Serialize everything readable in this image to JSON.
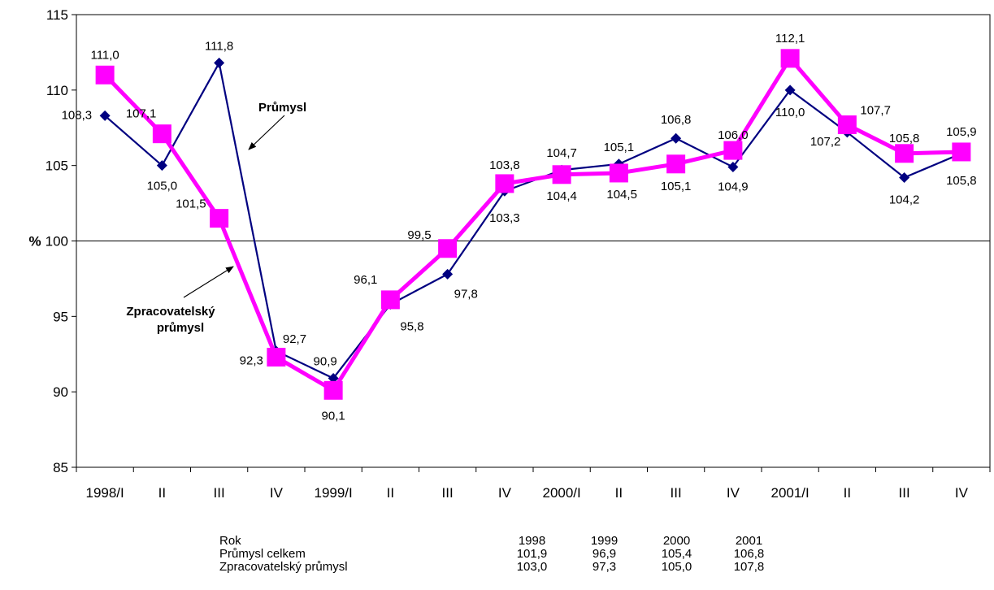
{
  "chart_data": {
    "type": "line",
    "ylabel": "%",
    "ylim": [
      85,
      115
    ],
    "yticks": [
      85,
      90,
      95,
      100,
      105,
      110,
      115
    ],
    "reference_line": 100,
    "categories": [
      "1998/I",
      "II",
      "III",
      "IV",
      "1999/I",
      "II",
      "III",
      "IV",
      "2000/I",
      "II",
      "III",
      "IV",
      "2001/I",
      "II",
      "III",
      "IV"
    ],
    "series": [
      {
        "name": "Průmysl",
        "color": "#000080",
        "marker": "diamond",
        "values": [
          108.3,
          105.0,
          111.8,
          92.7,
          90.9,
          95.8,
          97.8,
          103.3,
          104.7,
          105.1,
          106.8,
          104.9,
          110.0,
          107.2,
          104.2,
          105.8
        ],
        "labels": [
          "108,3",
          "105,0",
          "111,8",
          "92,7",
          "90,9",
          "95,8",
          "97,8",
          "103,3",
          "104,7",
          "105,1",
          "106,8",
          "104,9",
          "110,0",
          "107,2",
          "104,2",
          "105,8"
        ]
      },
      {
        "name": "Zpracovatelský průmysl",
        "color": "#ff00ff",
        "marker": "square",
        "values": [
          111.0,
          107.1,
          101.5,
          92.3,
          90.1,
          96.1,
          99.5,
          103.8,
          104.4,
          104.5,
          105.1,
          106.0,
          112.1,
          107.7,
          105.8,
          105.9
        ],
        "labels": [
          "111,0",
          "107,1",
          "101,5",
          "92,3",
          "90,1",
          "96,1",
          "99,5",
          "103,8",
          "104,4",
          "104,5",
          "105,1",
          "106,0",
          "112,1",
          "107,7",
          "105,8",
          "105,9"
        ]
      }
    ],
    "annotations": [
      {
        "text": "Průmysl"
      },
      {
        "text": "Zpracovatelský"
      },
      {
        "text": "průmysl"
      }
    ]
  },
  "summary_table": {
    "header_label": "Rok",
    "years": [
      "1998",
      "1999",
      "2000",
      "2001"
    ],
    "rows": [
      {
        "label": "Průmysl celkem",
        "values": [
          "101,9",
          "96,9",
          "105,4",
          "106,8"
        ]
      },
      {
        "label": "Zpracovatelský průmysl",
        "values": [
          "103,0",
          "97,3",
          "105,0",
          "107,8"
        ]
      }
    ]
  }
}
